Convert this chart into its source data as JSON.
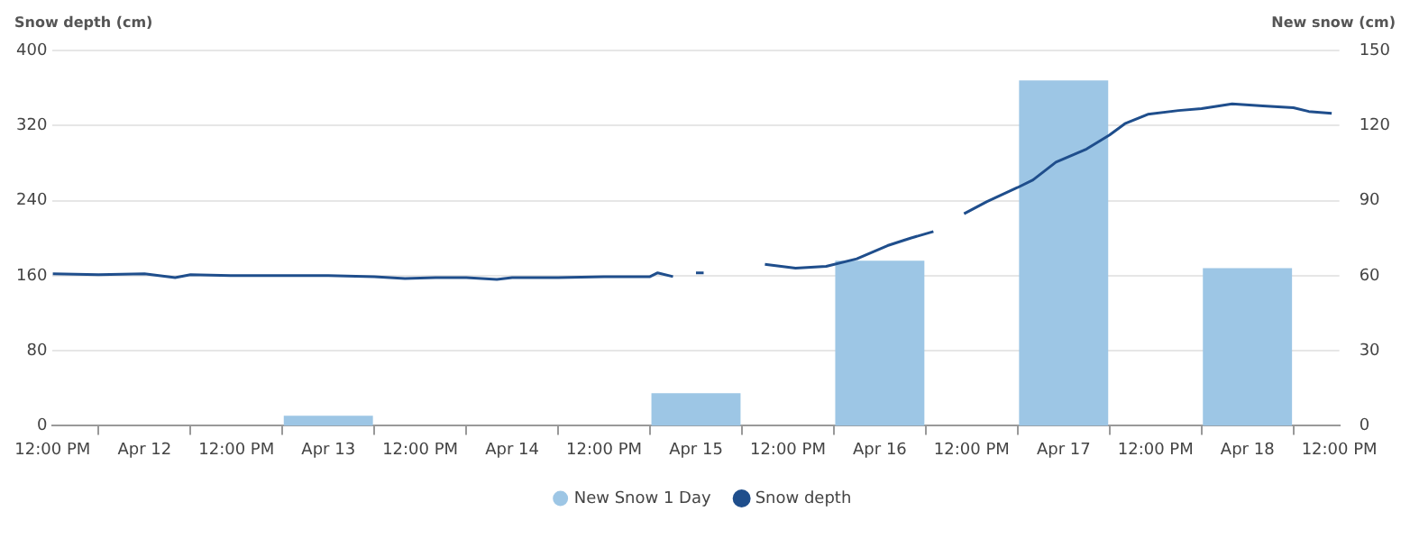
{
  "chart_data": {
    "type": "bar",
    "ylabel": "Snow depth (cm)",
    "y2label": "New snow (cm)",
    "xlim": [
      "--04-11T12:00",
      "--04-18T12:00"
    ],
    "xticks": [
      {
        "value": "--04-11T12:00",
        "label": "12:00 PM"
      },
      {
        "value": "--04-12T00:00",
        "label": "Apr 12"
      },
      {
        "value": "--04-12T12:00",
        "label": "12:00 PM"
      },
      {
        "value": "--04-13T00:00",
        "label": "Apr 13"
      },
      {
        "value": "--04-13T12:00",
        "label": "12:00 PM"
      },
      {
        "value": "--04-14T00:00",
        "label": "Apr 14"
      },
      {
        "value": "--04-14T12:00",
        "label": "12:00 PM"
      },
      {
        "value": "--04-15T00:00",
        "label": "Apr 15"
      },
      {
        "value": "--04-15T12:00",
        "label": "12:00 PM"
      },
      {
        "value": "--04-16T00:00",
        "label": "Apr 16"
      },
      {
        "value": "--04-16T12:00",
        "label": "12:00 PM"
      },
      {
        "value": "--04-17T00:00",
        "label": "Apr 17"
      },
      {
        "value": "--04-17T12:00",
        "label": "12:00 PM"
      },
      {
        "value": "--04-18T00:00",
        "label": "Apr 18"
      },
      {
        "value": "--04-18T12:00",
        "label": "12:00 PM"
      }
    ],
    "ylim": [
      0,
      400
    ],
    "yticks": [
      0,
      80,
      160,
      240,
      320,
      400
    ],
    "y2lim": [
      0,
      150
    ],
    "y2ticks": [
      0,
      30,
      60,
      90,
      120,
      150
    ],
    "grid": "y",
    "legend": "bottom",
    "series": [
      {
        "name": "New Snow 1 Day",
        "axis": "y2",
        "color": "#9dc6e5",
        "x": [
          "--04-13T00:00",
          "--04-15T00:00",
          "--04-16T00:00",
          "--04-17T00:00",
          "--04-18T00:00"
        ],
        "values": [
          4,
          13,
          66,
          138,
          63
        ]
      },
      {
        "name": "Snow depth",
        "type": "line",
        "color": "#1f4e8c",
        "x": [
          "--04-11T12:00",
          "--04-11T18:00",
          "--04-12T00:00",
          "--04-12T04:00",
          "--04-12T06:00",
          "--04-12T12:00",
          "--04-12T18:00",
          "--04-13T00:00",
          "--04-13T06:00",
          "--04-13T10:00",
          "--04-13T14:00",
          "--04-13T18:00",
          "--04-13T22:00",
          "--04-14T00:00",
          "--04-14T06:00",
          "--04-14T12:00",
          "--04-14T18:00",
          "--04-14T19:00",
          "--04-14T21:00",
          "--04-14T22:00",
          "--04-15T00:00",
          "--04-15T01:00",
          "--04-15T04:00",
          "--04-15T09:00",
          "--04-15T13:00",
          "--04-15T17:00",
          "--04-15T21:00",
          "--04-16T01:00",
          "--04-16T04:00",
          "--04-16T07:00",
          "--04-16T09:00",
          "--04-16T11:00",
          "--04-16T14:00",
          "--04-16T18:00",
          "--04-16T20:00",
          "--04-16T23:00",
          "--04-17T03:00",
          "--04-17T06:00",
          "--04-17T08:00",
          "--04-17T11:00",
          "--04-17T15:00",
          "--04-17T18:00",
          "--04-17T22:00",
          "--04-18T02:00",
          "--04-18T06:00",
          "--04-18T08:00",
          "--04-18T11:00"
        ],
        "values": [
          162,
          161,
          162,
          158,
          161,
          160,
          160,
          160,
          159,
          157,
          158,
          158,
          156,
          158,
          158,
          159,
          159,
          163,
          159,
          null,
          163,
          163,
          null,
          172,
          168,
          170,
          178,
          192,
          200,
          207,
          null,
          226,
          239,
          254,
          262,
          281,
          295,
          310,
          322,
          332,
          336,
          338,
          343,
          341,
          339,
          335,
          333
        ]
      }
    ]
  }
}
